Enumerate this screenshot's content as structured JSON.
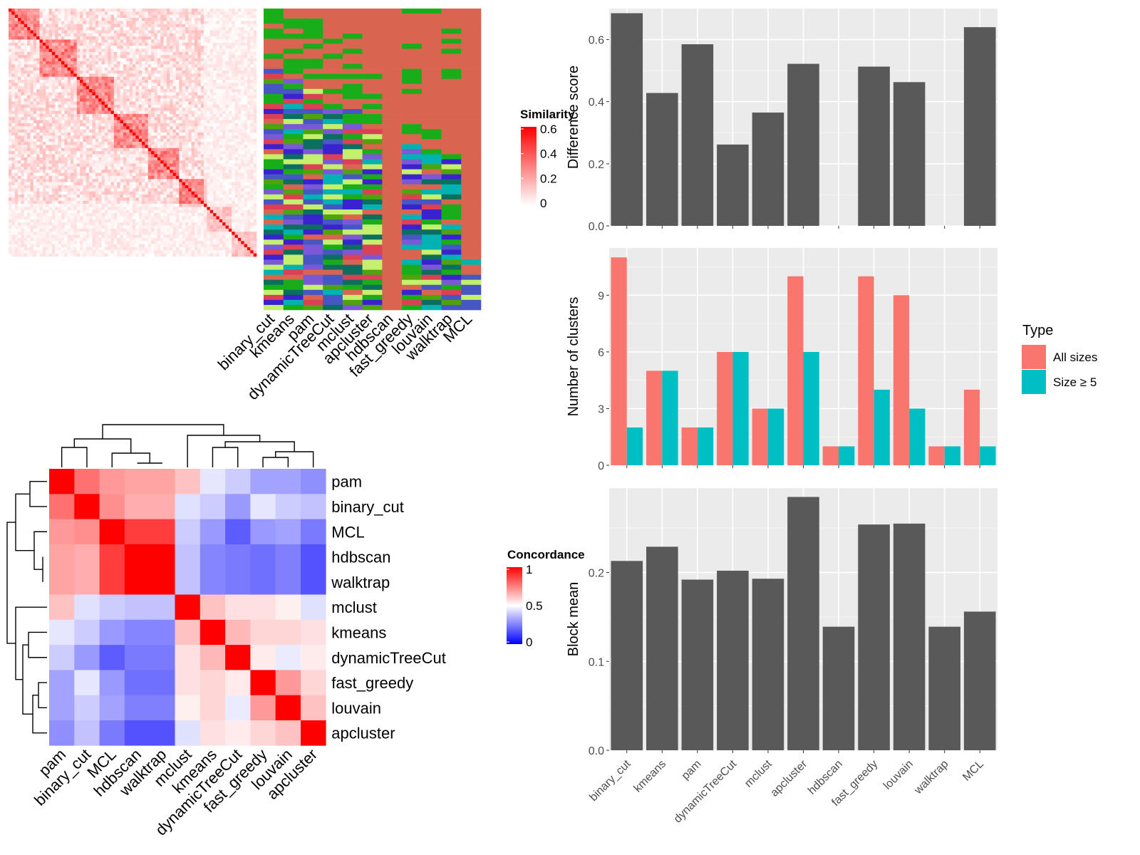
{
  "chart_data": [
    {
      "type": "heatmap",
      "legend_title": "Similarity",
      "legend_ticks": [
        "0.6",
        "0.4",
        "0.2",
        "0"
      ],
      "value_range": [
        0,
        0.6
      ],
      "colors": {
        "low": "#ffffff",
        "high": "#ff0000"
      },
      "matrix_size": 80,
      "method_columns": [
        "binary_cut",
        "kmeans",
        "pam",
        "dynamicTreeCut",
        "mclust",
        "apcluster",
        "hdbscan",
        "fast_greedy",
        "louvain",
        "walktrap",
        "MCL"
      ]
    },
    {
      "type": "heatmap",
      "legend_title": "Concordance",
      "legend_ticks": [
        "1",
        "0.5",
        "0"
      ],
      "value_range": [
        0,
        1
      ],
      "colors": {
        "low": "#0000ff",
        "mid": "#ffffff",
        "high": "#ff0000"
      },
      "rows": [
        "pam",
        "binary_cut",
        "MCL",
        "hdbscan",
        "walktrap",
        "mclust",
        "kmeans",
        "dynamicTreeCut",
        "fast_greedy",
        "louvain",
        "apcluster"
      ],
      "columns": [
        "pam",
        "binary_cut",
        "MCL",
        "hdbscan",
        "walktrap",
        "mclust",
        "kmeans",
        "dynamicTreeCut",
        "fast_greedy",
        "louvain",
        "apcluster"
      ],
      "values": [
        [
          1.0,
          0.78,
          0.7,
          0.68,
          0.68,
          0.62,
          0.45,
          0.4,
          0.32,
          0.32,
          0.28
        ],
        [
          0.78,
          1.0,
          0.72,
          0.66,
          0.66,
          0.44,
          0.4,
          0.3,
          0.45,
          0.4,
          0.38
        ],
        [
          0.7,
          0.72,
          1.0,
          0.88,
          0.88,
          0.4,
          0.3,
          0.18,
          0.3,
          0.32,
          0.24
        ],
        [
          0.68,
          0.66,
          0.88,
          1.0,
          1.0,
          0.38,
          0.26,
          0.24,
          0.22,
          0.25,
          0.16
        ],
        [
          0.68,
          0.66,
          0.88,
          1.0,
          1.0,
          0.38,
          0.26,
          0.24,
          0.22,
          0.25,
          0.16
        ],
        [
          0.62,
          0.44,
          0.4,
          0.38,
          0.38,
          1.0,
          0.62,
          0.56,
          0.56,
          0.53,
          0.44
        ],
        [
          0.45,
          0.4,
          0.3,
          0.26,
          0.26,
          0.62,
          1.0,
          0.64,
          0.58,
          0.58,
          0.56
        ],
        [
          0.4,
          0.3,
          0.18,
          0.24,
          0.24,
          0.56,
          0.64,
          1.0,
          0.54,
          0.46,
          0.54
        ],
        [
          0.32,
          0.45,
          0.3,
          0.22,
          0.22,
          0.56,
          0.58,
          0.54,
          1.0,
          0.7,
          0.58
        ],
        [
          0.32,
          0.4,
          0.32,
          0.25,
          0.25,
          0.53,
          0.58,
          0.46,
          0.7,
          1.0,
          0.62
        ],
        [
          0.28,
          0.38,
          0.24,
          0.16,
          0.16,
          0.44,
          0.56,
          0.54,
          0.58,
          0.62,
          1.0
        ]
      ]
    },
    {
      "type": "bar",
      "ylabel": "Difference score",
      "ylim": [
        0,
        0.7
      ],
      "yticks": [
        0.0,
        0.2,
        0.4,
        0.6
      ],
      "ytick_labels": [
        "0.0",
        "0.2",
        "0.4",
        "0.6"
      ],
      "categories": [
        "binary_cut",
        "kmeans",
        "pam",
        "dynamicTreeCut",
        "mclust",
        "apcluster",
        "hdbscan",
        "fast_greedy",
        "louvain",
        "walktrap",
        "MCL"
      ],
      "values": [
        0.685,
        0.428,
        0.585,
        0.262,
        0.365,
        0.522,
        0,
        0.513,
        0.463,
        0,
        0.64
      ],
      "color": "#595959"
    },
    {
      "type": "bar",
      "ylabel": "Number of clusters",
      "ylim": [
        0,
        11.5
      ],
      "yticks": [
        0,
        3,
        6,
        9
      ],
      "ytick_labels": [
        "0",
        "3",
        "6",
        "9"
      ],
      "categories": [
        "binary_cut",
        "kmeans",
        "pam",
        "dynamicTreeCut",
        "mclust",
        "apcluster",
        "hdbscan",
        "fast_greedy",
        "louvain",
        "walktrap",
        "MCL"
      ],
      "legend_title": "Type",
      "series": [
        {
          "name": "All sizes",
          "color": "#f8766d",
          "values": [
            11,
            5,
            2,
            6,
            3,
            10,
            1,
            10,
            9,
            1,
            4
          ]
        },
        {
          "name": "Size ≥ 5",
          "color": "#00bfc4",
          "values": [
            2,
            5,
            2,
            6,
            3,
            6,
            1,
            4,
            3,
            1,
            1
          ]
        }
      ]
    },
    {
      "type": "bar",
      "ylabel": "Block mean",
      "ylim": [
        0,
        0.295
      ],
      "yticks": [
        0.0,
        0.1,
        0.2
      ],
      "ytick_labels": [
        "0.0",
        "0.1",
        "0.2"
      ],
      "categories": [
        "binary_cut",
        "kmeans",
        "pam",
        "dynamicTreeCut",
        "mclust",
        "apcluster",
        "hdbscan",
        "fast_greedy",
        "louvain",
        "walktrap",
        "MCL"
      ],
      "values": [
        0.213,
        0.229,
        0.192,
        0.202,
        0.193,
        0.285,
        0.139,
        0.254,
        0.255,
        0.139,
        0.156
      ],
      "color": "#595959"
    }
  ]
}
